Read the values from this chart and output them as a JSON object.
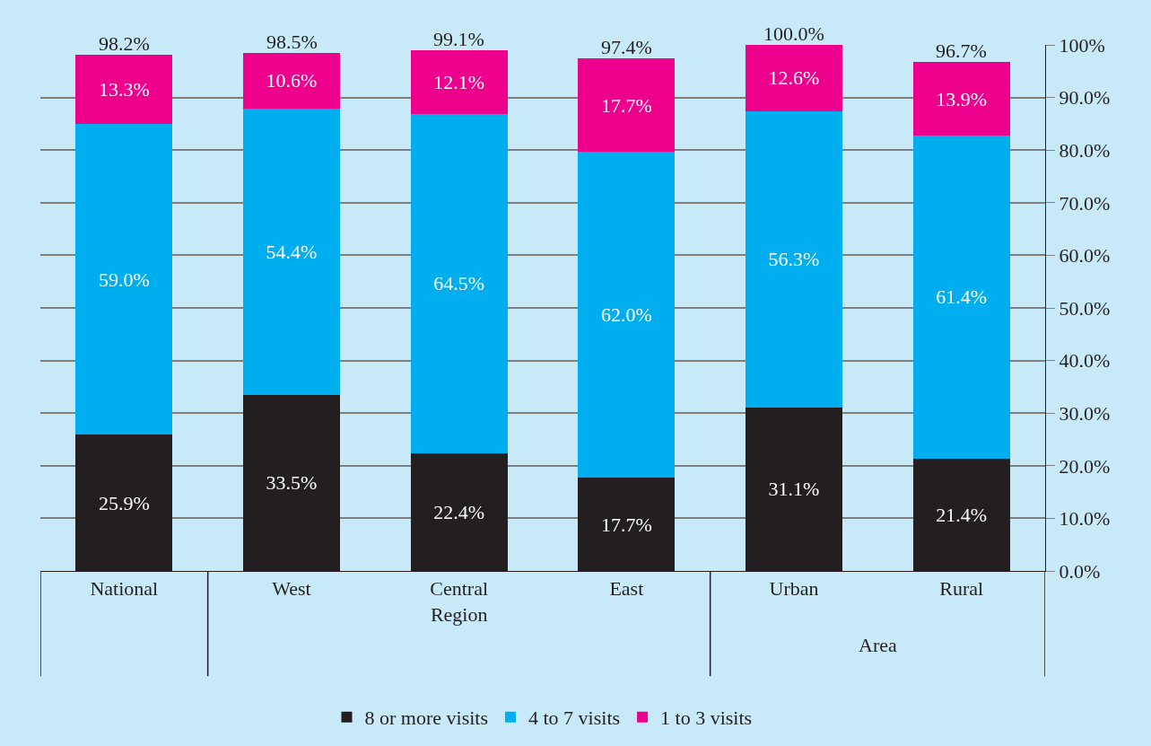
{
  "chart_data": {
    "type": "bar",
    "stacked": true,
    "categories": [
      "National",
      "West",
      "Central Region",
      "East",
      "Urban",
      "Rural"
    ],
    "series": [
      {
        "name": "8 or more visits",
        "color": "#231f20",
        "values": [
          25.9,
          33.5,
          22.4,
          17.7,
          31.1,
          21.4
        ],
        "value_labels": [
          "25.9%",
          "33.5%",
          "22.4%",
          "17.7%",
          "31.1%",
          "21.4%"
        ]
      },
      {
        "name": "4 to 7 visits",
        "color": "#00aeef",
        "values": [
          59.0,
          54.4,
          64.5,
          62.0,
          56.3,
          61.4
        ],
        "value_labels": [
          "59.0%",
          "54.4%",
          "64.5%",
          "62.0%",
          "56.3%",
          "61.4%"
        ]
      },
      {
        "name": "1 to 3 visits",
        "color": "#ec008c",
        "values": [
          13.3,
          10.6,
          12.1,
          17.7,
          12.6,
          13.9
        ],
        "value_labels": [
          "13.3%",
          "10.6%",
          "12.1%",
          "17.7%",
          "12.6%",
          "13.9%"
        ]
      }
    ],
    "totals": [
      "98.2%",
      "98.5%",
      "99.1%",
      "97.4%",
      "100.0%",
      "96.7%"
    ],
    "ylim": [
      0,
      100
    ],
    "yticks": [
      {
        "value": 0,
        "label": "0.0%"
      },
      {
        "value": 10,
        "label": "10.0%"
      },
      {
        "value": 20,
        "label": "20.0%"
      },
      {
        "value": 30,
        "label": "30.0%"
      },
      {
        "value": 40,
        "label": "40.0%"
      },
      {
        "value": 50,
        "label": "50.0%"
      },
      {
        "value": 60,
        "label": "60.0%"
      },
      {
        "value": 70,
        "label": "70.0%"
      },
      {
        "value": 80,
        "label": "80.0%"
      },
      {
        "value": 90,
        "label": "90.0%"
      },
      {
        "value": 100,
        "label": "100%"
      }
    ],
    "grid": "y",
    "legend": "bottom",
    "annotations": [
      "Area"
    ]
  }
}
